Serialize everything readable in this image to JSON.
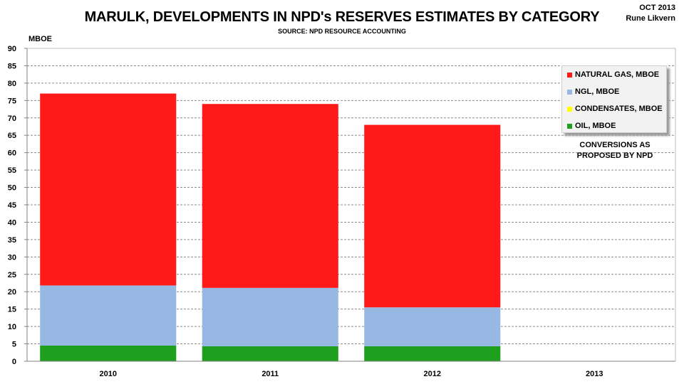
{
  "header": {
    "title": "MARULK, DEVELOPMENTS IN NPD's RESERVES ESTIMATES BY CATEGORY",
    "subtitle": "SOURCE: NPD RESOURCE ACCOUNTING",
    "date": "OCT 2013",
    "author": "Rune Likvern"
  },
  "note": {
    "line1": "CONVERSIONS AS",
    "line2": "PROPOSED BY NPD"
  },
  "chart_data": {
    "type": "bar",
    "stacked": true,
    "title": "MARULK, DEVELOPMENTS IN NPD's RESERVES ESTIMATES BY CATEGORY",
    "ylabel": "MBOE",
    "xlabel": "",
    "ylim": [
      0,
      90
    ],
    "yticks": [
      "0",
      "5",
      "10",
      "15",
      "20",
      "25",
      "30",
      "35",
      "40",
      "45",
      "50",
      "55",
      "60",
      "65",
      "70",
      "75",
      "80",
      "85",
      "90"
    ],
    "categories": [
      "2010",
      "2011",
      "2012",
      "2013"
    ],
    "grid": true,
    "legend_position": "top-right",
    "series": [
      {
        "name": "OIL,  MBOE",
        "color": "#1ea01e",
        "values": [
          4.5,
          4.3,
          4.3,
          0
        ]
      },
      {
        "name": "CONDENSATES,  MBOE",
        "color": "#ffff00",
        "values": [
          0,
          0,
          0,
          0
        ]
      },
      {
        "name": "NGL,  MBOE",
        "color": "#98b8e4",
        "values": [
          17.3,
          16.8,
          11.2,
          0
        ]
      },
      {
        "name": "NATURAL GAS,  MBOE",
        "color": "#ff1a1a",
        "values": [
          55.2,
          52.9,
          52.5,
          0
        ]
      }
    ],
    "legend_order": [
      3,
      2,
      1,
      0
    ]
  }
}
